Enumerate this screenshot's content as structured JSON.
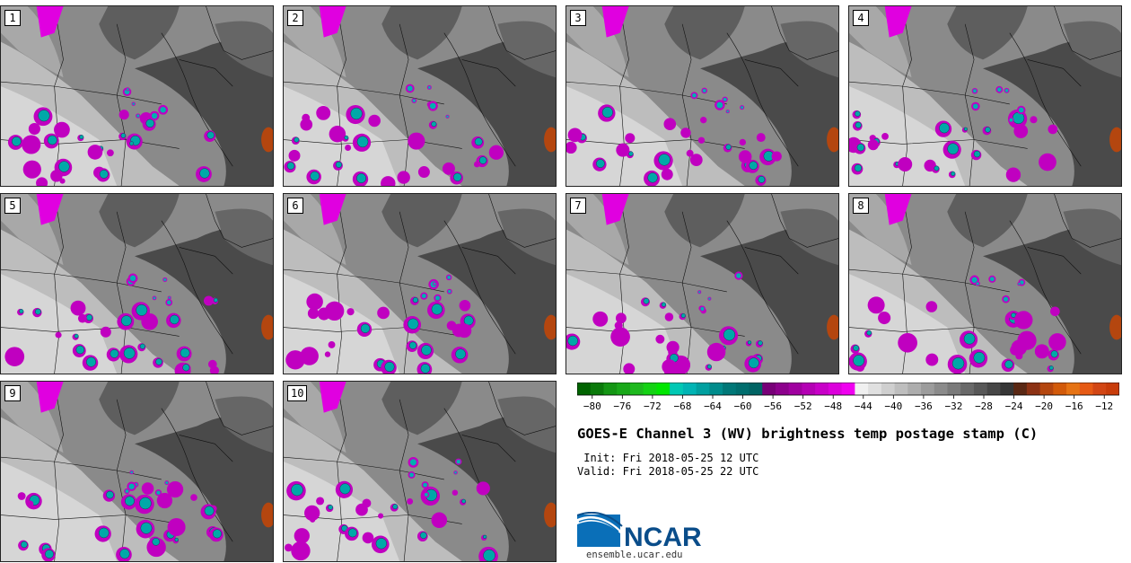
{
  "panels": [
    {
      "label": "1"
    },
    {
      "label": "2"
    },
    {
      "label": "3"
    },
    {
      "label": "4"
    },
    {
      "label": "5"
    },
    {
      "label": "6"
    },
    {
      "label": "7"
    },
    {
      "label": "8"
    },
    {
      "label": "9"
    },
    {
      "label": "10"
    }
  ],
  "colorbar": {
    "tick_labels": [
      "−80",
      "−76",
      "−72",
      "−68",
      "−64",
      "−60",
      "−56",
      "−52",
      "−48",
      "−44",
      "−40",
      "−36",
      "−32",
      "−28",
      "−24",
      "−20",
      "−16",
      "−12"
    ],
    "tick_values": [
      -80,
      -76,
      -72,
      -68,
      -64,
      -60,
      -56,
      -52,
      -48,
      -44,
      -40,
      -36,
      -32,
      -28,
      -24,
      -20,
      -16,
      -12
    ],
    "min": -82,
    "max": -10,
    "step": 2,
    "colors": [
      "#006400",
      "#0a7a0a",
      "#149614",
      "#19a819",
      "#1eb91e",
      "#14d214",
      "#00e600",
      "#00c8b4",
      "#00b4b4",
      "#00a0a0",
      "#008c8c",
      "#007878",
      "#006e6e",
      "#006464",
      "#780078",
      "#8c008c",
      "#a000a0",
      "#b400b4",
      "#c800c8",
      "#dc00dc",
      "#f000f0",
      "#f0f0f0",
      "#e0e0e0",
      "#cfcfcf",
      "#bebebe",
      "#adadad",
      "#9c9c9c",
      "#8b8b8b",
      "#7a7a7a",
      "#696969",
      "#585858",
      "#474747",
      "#363636",
      "#5a2814",
      "#8c3214",
      "#b4460f",
      "#d25a0a",
      "#e67314",
      "#e65a14",
      "#d24614",
      "#c83c0a"
    ]
  },
  "title": "GOES-E Channel 3 (WV) brightness temp postage stamp (C)",
  "init_text": " Init: Fri 2018-05-25 12 UTC",
  "valid_text": "Valid: Fri 2018-05-25 22 UTC",
  "logo": {
    "text": "NCAR",
    "url": "ensemble.ucar.edu",
    "brand_color": "#0a5aa0"
  }
}
